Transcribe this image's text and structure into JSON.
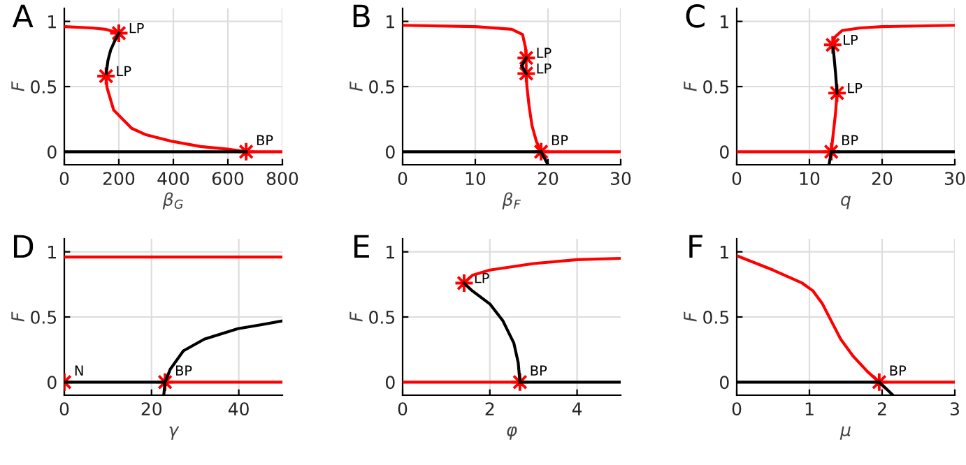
{
  "chart_data": [
    {
      "type": "line",
      "title": "A",
      "xlabel": "β$_{G}$",
      "ylabel": "F",
      "xlim": [
        0,
        800
      ],
      "xticks": [
        0,
        200,
        400,
        600,
        800
      ],
      "ylim": [
        -0.1,
        1.1
      ],
      "yticks": [
        0,
        0.5,
        1
      ],
      "grid": true,
      "series": [
        {
          "color": "#ff0000",
          "x": [
            0,
            100,
            150,
            200
          ],
          "values": [
            0.96,
            0.95,
            0.94,
            0.91
          ]
        },
        {
          "color": "#000000",
          "x": [
            200,
            185,
            170,
            160,
            155,
            153
          ],
          "values": [
            0.91,
            0.85,
            0.78,
            0.7,
            0.62,
            0.58
          ]
        },
        {
          "color": "#ff0000",
          "x": [
            153,
            157,
            181,
            247,
            300,
            395,
            500,
            600,
            667,
            800
          ],
          "values": [
            0.58,
            0.49,
            0.32,
            0.18,
            0.13,
            0.08,
            0.04,
            0.02,
            0,
            0
          ]
        },
        {
          "color": "#000000",
          "x": [
            0,
            667
          ],
          "values": [
            0,
            0
          ]
        },
        {
          "type": "scatter",
          "color": "#ff0000",
          "marker": "star",
          "x": [
            200,
            153,
            667
          ],
          "values": [
            0.91,
            0.58,
            0
          ]
        }
      ],
      "annotations": [
        {
          "text": "LP",
          "x": 200,
          "y": 0.91
        },
        {
          "text": "LP",
          "x": 153,
          "y": 0.58
        },
        {
          "text": "BP",
          "x": 667,
          "y": 0
        }
      ]
    },
    {
      "type": "line",
      "title": "B",
      "xlabel": "β$_{F}$",
      "ylabel": "F",
      "xlim": [
        0,
        30
      ],
      "xticks": [
        0,
        10,
        20,
        30
      ],
      "ylim": [
        -0.1,
        1.1
      ],
      "yticks": [
        0,
        0.5,
        1
      ],
      "grid": true,
      "series": [
        {
          "color": "#ff0000",
          "x": [
            0,
            10,
            15,
            16.5,
            16.9,
            17
          ],
          "values": [
            0.97,
            0.96,
            0.94,
            0.9,
            0.8,
            0.72
          ]
        },
        {
          "color": "#ff0000",
          "x": [
            17,
            17.1,
            17.4,
            17.8,
            18.4,
            19.05,
            30
          ],
          "values": [
            0.6,
            0.5,
            0.35,
            0.2,
            0.08,
            0,
            0
          ]
        },
        {
          "color": "#000000",
          "x": [
            0,
            19.05
          ],
          "values": [
            0,
            0
          ]
        },
        {
          "color": "#000000",
          "x": [
            19.05,
            20
          ],
          "values": [
            0,
            -0.1
          ]
        },
        {
          "color": "#000000",
          "x": [
            16.4,
            17
          ],
          "values": [
            0.66,
            0.72
          ]
        },
        {
          "color": "#000000",
          "x": [
            16.4,
            17
          ],
          "values": [
            0.66,
            0.6
          ]
        },
        {
          "type": "scatter",
          "color": "#ff0000",
          "marker": "star",
          "x": [
            17,
            17,
            19.05
          ],
          "values": [
            0.72,
            0.6,
            0
          ]
        }
      ],
      "annotations": [
        {
          "text": "LP",
          "x": 17,
          "y": 0.72
        },
        {
          "text": "LP",
          "x": 17,
          "y": 0.6
        },
        {
          "text": "BP",
          "x": 19.05,
          "y": 0
        }
      ]
    },
    {
      "type": "line",
      "title": "C",
      "xlabel": "q",
      "ylabel": "F",
      "xlim": [
        0,
        30
      ],
      "xticks": [
        0,
        10,
        20,
        30
      ],
      "ylim": [
        -0.1,
        1.1
      ],
      "yticks": [
        0,
        0.5,
        1
      ],
      "grid": true,
      "series": [
        {
          "color": "#ff0000",
          "x": [
            0,
            13
          ],
          "values": [
            0,
            0
          ]
        },
        {
          "color": "#ff0000",
          "x": [
            13,
            13.3,
            13.6,
            13.8
          ],
          "values": [
            0,
            0.15,
            0.3,
            0.45
          ]
        },
        {
          "color": "#000000",
          "x": [
            13.8,
            13.6,
            13.35,
            13.2
          ],
          "values": [
            0.45,
            0.6,
            0.75,
            0.82
          ]
        },
        {
          "color": "#ff0000",
          "x": [
            13.2,
            13.5,
            14.5,
            17,
            20,
            30
          ],
          "values": [
            0.82,
            0.88,
            0.93,
            0.95,
            0.96,
            0.97
          ]
        },
        {
          "color": "#000000",
          "x": [
            13,
            30
          ],
          "values": [
            0,
            0
          ]
        },
        {
          "color": "#000000",
          "x": [
            13,
            12.7
          ],
          "values": [
            0,
            -0.1
          ]
        },
        {
          "type": "scatter",
          "color": "#ff0000",
          "marker": "star",
          "x": [
            13.2,
            13.8,
            13
          ],
          "values": [
            0.82,
            0.45,
            0
          ]
        }
      ],
      "annotations": [
        {
          "text": "LP",
          "x": 13.2,
          "y": 0.82
        },
        {
          "text": "LP",
          "x": 13.8,
          "y": 0.45
        },
        {
          "text": "BP",
          "x": 13,
          "y": 0
        }
      ]
    },
    {
      "type": "line",
      "title": "D",
      "xlabel": "γ",
      "ylabel": "F",
      "xlim": [
        0,
        50
      ],
      "xticks": [
        0,
        20,
        40
      ],
      "ylim": [
        -0.1,
        1.1
      ],
      "yticks": [
        0,
        0.5,
        1
      ],
      "grid": true,
      "series": [
        {
          "color": "#ff0000",
          "x": [
            0,
            50
          ],
          "values": [
            0.96,
            0.96
          ]
        },
        {
          "color": "#000000",
          "x": [
            0,
            23.1
          ],
          "values": [
            0,
            0
          ]
        },
        {
          "color": "#ff0000",
          "x": [
            23.1,
            50
          ],
          "values": [
            0,
            0
          ]
        },
        {
          "color": "#000000",
          "x": [
            23.1,
            24.3,
            27.3,
            32.1,
            39.8,
            45,
            50
          ],
          "values": [
            0,
            0.1,
            0.24,
            0.33,
            0.41,
            0.44,
            0.47
          ]
        },
        {
          "color": "#000000",
          "x": [
            23.1,
            22.8
          ],
          "values": [
            0,
            -0.1
          ]
        },
        {
          "type": "scatter",
          "color": "#ff0000",
          "marker": "star",
          "x": [
            0,
            23.1
          ],
          "values": [
            0,
            0
          ]
        }
      ],
      "annotations": [
        {
          "text": "N",
          "x": 0,
          "y": 0
        },
        {
          "text": "BP",
          "x": 23.1,
          "y": 0
        }
      ]
    },
    {
      "type": "line",
      "title": "E",
      "xlabel": "φ",
      "ylabel": "F",
      "xlim": [
        0,
        5
      ],
      "xticks": [
        0,
        2,
        4
      ],
      "ylim": [
        -0.1,
        1.1
      ],
      "yticks": [
        0,
        0.5,
        1
      ],
      "grid": true,
      "series": [
        {
          "color": "#ff0000",
          "x": [
            1.41,
            1.6,
            2,
            3,
            4,
            5
          ],
          "values": [
            0.76,
            0.82,
            0.86,
            0.91,
            0.94,
            0.95
          ]
        },
        {
          "color": "#000000",
          "x": [
            1.41,
            1.6,
            2,
            2.3,
            2.55,
            2.65,
            2.69
          ],
          "values": [
            0.76,
            0.7,
            0.6,
            0.47,
            0.3,
            0.15,
            0
          ]
        },
        {
          "color": "#ff0000",
          "x": [
            0,
            2.69
          ],
          "values": [
            0,
            0
          ]
        },
        {
          "color": "#000000",
          "x": [
            2.69,
            5
          ],
          "values": [
            0,
            0
          ]
        },
        {
          "type": "scatter",
          "color": "#ff0000",
          "marker": "star",
          "x": [
            1.41,
            2.69
          ],
          "values": [
            0.76,
            0
          ]
        }
      ],
      "annotations": [
        {
          "text": "LP",
          "x": 1.41,
          "y": 0.76
        },
        {
          "text": "BP",
          "x": 2.69,
          "y": 0
        }
      ]
    },
    {
      "type": "line",
      "title": "F",
      "xlabel": "μ",
      "ylabel": "F",
      "xlim": [
        0,
        3
      ],
      "xticks": [
        0,
        1,
        2,
        3
      ],
      "ylim": [
        -0.1,
        1.1
      ],
      "yticks": [
        0,
        0.5,
        1
      ],
      "grid": true,
      "series": [
        {
          "color": "#ff0000",
          "x": [
            0,
            0.5,
            0.9,
            1.05,
            1.18,
            1.3,
            1.43,
            1.6,
            1.8,
            1.96,
            3
          ],
          "values": [
            0.97,
            0.86,
            0.76,
            0.7,
            0.6,
            0.47,
            0.33,
            0.2,
            0.08,
            0,
            0
          ]
        },
        {
          "color": "#000000",
          "x": [
            0,
            1.96
          ],
          "values": [
            0,
            0
          ]
        },
        {
          "color": "#000000",
          "x": [
            1.96,
            2.15
          ],
          "values": [
            0,
            -0.1
          ]
        },
        {
          "type": "scatter",
          "color": "#ff0000",
          "marker": "star",
          "x": [
            1.96
          ],
          "values": [
            0
          ]
        }
      ],
      "annotations": [
        {
          "text": "BP",
          "x": 1.96,
          "y": 0
        }
      ]
    }
  ]
}
